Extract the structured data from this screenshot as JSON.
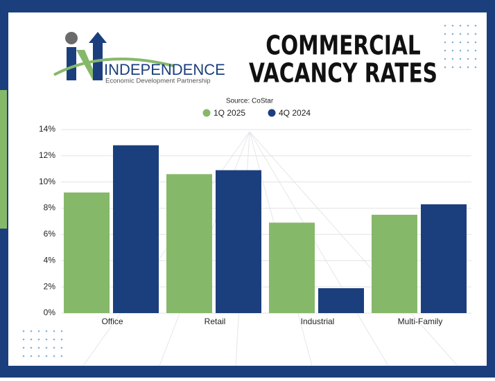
{
  "logo": {
    "name": "INDEPENDENCE",
    "tagline": "Economic Development Partnership"
  },
  "chart_data": {
    "type": "bar",
    "title": [
      "COMMERCIAL",
      "VACANCY RATES"
    ],
    "subtitle": "Source: CoStar",
    "categories": [
      "Office",
      "Retail",
      "Industrial",
      "Multi-Family"
    ],
    "series": [
      {
        "name": "1Q 2025",
        "color": "#86b86a",
        "values": [
          9.2,
          10.6,
          6.9,
          7.5
        ]
      },
      {
        "name": "4Q 2024",
        "color": "#1b3f7d",
        "values": [
          12.8,
          10.9,
          1.9,
          8.3
        ]
      }
    ],
    "ylim": [
      0,
      14
    ],
    "yticks": [
      {
        "value": 0,
        "label": "0%"
      },
      {
        "value": 2,
        "label": "2%"
      },
      {
        "value": 4,
        "label": "4%"
      },
      {
        "value": 6,
        "label": "6%"
      },
      {
        "value": 8,
        "label": "8%"
      },
      {
        "value": 10,
        "label": "10%"
      },
      {
        "value": 12,
        "label": "12%"
      },
      {
        "value": 14,
        "label": "14%"
      }
    ],
    "grid": true
  }
}
